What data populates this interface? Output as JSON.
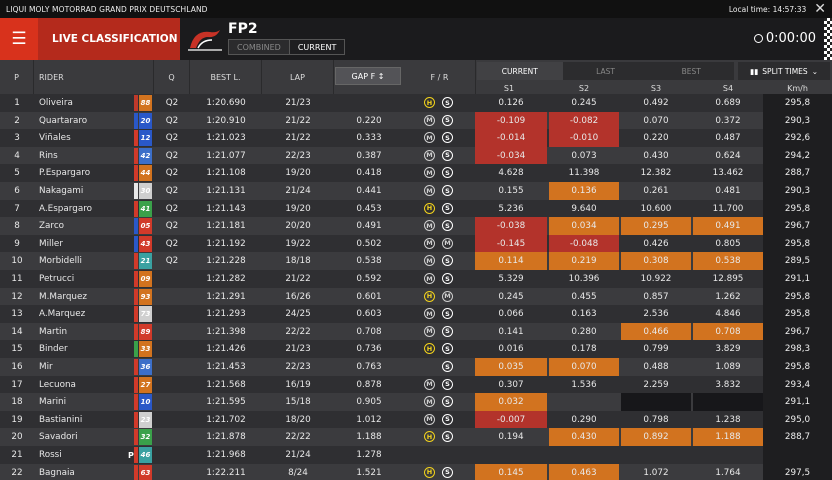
{
  "topbar": {
    "event": "LIQUI MOLY MOTORRAD GRAND PRIX DEUTSCHLAND",
    "local_time_label": "Local time:",
    "local_time": "14:57:33"
  },
  "header": {
    "menu_icon": "hamburger-icon",
    "title": "LIVE CLASSIFICATION",
    "session": "FP2",
    "modes": [
      "COMBINED",
      "CURRENT"
    ],
    "active_mode": "CURRENT",
    "timer": "0:00:00"
  },
  "columns": {
    "p": "P",
    "rider": "RIDER",
    "q": "Q",
    "best": "BEST L.",
    "lap": "LAP",
    "gap": "GAP F",
    "fr": "F / R",
    "kmh": "Km/h",
    "sectors": [
      "S1",
      "S2",
      "S3",
      "S4"
    ],
    "split_views": [
      "CURRENT",
      "LAST",
      "BEST"
    ],
    "split_times": "SPLIT TIMES"
  },
  "colors": {
    "brand_red": "#d8321c",
    "sector_red": "#b3332b",
    "sector_orange": "#d2731f",
    "hard_tyre": "#f2d21c"
  },
  "rows": [
    {
      "p": "1",
      "rider": "Oliveira",
      "num": "88",
      "flag": "#c0392b",
      "numcolor": "#d2731f",
      "q": "Q2",
      "best": "1:20.690",
      "lap": "21/23",
      "gap": "",
      "tyres": [
        "H",
        "S"
      ],
      "s": [
        "0.126",
        "0.245",
        "0.492",
        "0.689"
      ],
      "sc": [
        "",
        "",
        "",
        ""
      ],
      "kmh": "295,8"
    },
    {
      "p": "2",
      "rider": "Quartararo",
      "num": "20",
      "flag": "#2a58c8",
      "numcolor": "#2a58c8",
      "q": "Q2",
      "best": "1:20.910",
      "lap": "21/22",
      "gap": "0.220",
      "tyres": [
        "M",
        "S"
      ],
      "s": [
        "-0.109",
        "-0.082",
        "0.070",
        "0.372"
      ],
      "sc": [
        "red",
        "red",
        "",
        ""
      ],
      "kmh": "290,3"
    },
    {
      "p": "3",
      "rider": "Viñales",
      "num": "12",
      "flag": "#d13a2a",
      "numcolor": "#2a58c8",
      "q": "Q2",
      "best": "1:21.023",
      "lap": "21/22",
      "gap": "0.333",
      "tyres": [
        "M",
        "S"
      ],
      "s": [
        "-0.014",
        "-0.010",
        "0.220",
        "0.487"
      ],
      "sc": [
        "red",
        "red",
        "",
        ""
      ],
      "kmh": "292,6"
    },
    {
      "p": "4",
      "rider": "Rins",
      "num": "42",
      "flag": "#d13a2a",
      "numcolor": "#3c6fc9",
      "q": "Q2",
      "best": "1:21.077",
      "lap": "22/23",
      "gap": "0.387",
      "tyres": [
        "M",
        "S"
      ],
      "s": [
        "-0.034",
        "0.073",
        "0.430",
        "0.624"
      ],
      "sc": [
        "red",
        "",
        "",
        ""
      ],
      "kmh": "294,2"
    },
    {
      "p": "5",
      "rider": "P.Espargaro",
      "num": "44",
      "flag": "#d13a2a",
      "numcolor": "#d2731f",
      "q": "Q2",
      "best": "1:21.108",
      "lap": "19/20",
      "gap": "0.418",
      "tyres": [
        "M",
        "S"
      ],
      "s": [
        "4.628",
        "11.398",
        "12.382",
        "13.462"
      ],
      "sc": [
        "",
        "",
        "",
        ""
      ],
      "kmh": "288,7"
    },
    {
      "p": "6",
      "rider": "Nakagami",
      "num": "30",
      "flag": "#e8e8e8",
      "numcolor": "#cfcfcf",
      "q": "Q2",
      "best": "1:21.131",
      "lap": "21/24",
      "gap": "0.441",
      "tyres": [
        "M",
        "S"
      ],
      "s": [
        "0.155",
        "0.136",
        "0.261",
        "0.481"
      ],
      "sc": [
        "",
        "orange",
        "",
        ""
      ],
      "kmh": "290,3"
    },
    {
      "p": "7",
      "rider": "A.Espargaro",
      "num": "41",
      "flag": "#d13a2a",
      "numcolor": "#3aa14a",
      "q": "Q2",
      "best": "1:21.143",
      "lap": "19/20",
      "gap": "0.453",
      "tyres": [
        "H",
        "S"
      ],
      "s": [
        "5.236",
        "9.640",
        "10.600",
        "11.700"
      ],
      "sc": [
        "",
        "",
        "",
        ""
      ],
      "kmh": "295,8"
    },
    {
      "p": "8",
      "rider": "Zarco",
      "num": "05",
      "flag": "#2a58c8",
      "numcolor": "#d13a2a",
      "q": "Q2",
      "best": "1:21.181",
      "lap": "20/20",
      "gap": "0.491",
      "tyres": [
        "M",
        "S"
      ],
      "s": [
        "-0.038",
        "0.034",
        "0.295",
        "0.491"
      ],
      "sc": [
        "red",
        "orange",
        "orange",
        "orange"
      ],
      "kmh": "296,7"
    },
    {
      "p": "9",
      "rider": "Miller",
      "num": "43",
      "flag": "#2a58c8",
      "numcolor": "#d13a2a",
      "q": "Q2",
      "best": "1:21.192",
      "lap": "19/22",
      "gap": "0.502",
      "tyres": [
        "M",
        "M"
      ],
      "s": [
        "-0.145",
        "-0.048",
        "0.426",
        "0.805"
      ],
      "sc": [
        "red",
        "red",
        "",
        ""
      ],
      "kmh": "295,8"
    },
    {
      "p": "10",
      "rider": "Morbidelli",
      "num": "21",
      "flag": "#d13a2a",
      "numcolor": "#3aa1a1",
      "q": "Q2",
      "best": "1:21.228",
      "lap": "18/18",
      "gap": "0.538",
      "tyres": [
        "M",
        "S"
      ],
      "s": [
        "0.114",
        "0.219",
        "0.308",
        "0.538"
      ],
      "sc": [
        "orange",
        "orange",
        "orange",
        "orange"
      ],
      "kmh": "289,5"
    },
    {
      "p": "11",
      "rider": "Petrucci",
      "num": "09",
      "flag": "#d13a2a",
      "numcolor": "#d2731f",
      "q": "",
      "best": "1:21.282",
      "lap": "21/22",
      "gap": "0.592",
      "tyres": [
        "M",
        "S"
      ],
      "s": [
        "5.329",
        "10.396",
        "10.922",
        "12.895"
      ],
      "sc": [
        "",
        "",
        "",
        ""
      ],
      "kmh": "291,1"
    },
    {
      "p": "12",
      "rider": "M.Marquez",
      "num": "93",
      "flag": "#d13a2a",
      "numcolor": "#d2731f",
      "q": "",
      "best": "1:21.291",
      "lap": "16/26",
      "gap": "0.601",
      "tyres": [
        "H",
        "M"
      ],
      "s": [
        "0.245",
        "0.455",
        "0.857",
        "1.262"
      ],
      "sc": [
        "",
        "",
        "",
        ""
      ],
      "kmh": "295,8"
    },
    {
      "p": "13",
      "rider": "A.Marquez",
      "num": "73",
      "flag": "#d13a2a",
      "numcolor": "#cfcfcf",
      "q": "",
      "best": "1:21.293",
      "lap": "24/25",
      "gap": "0.603",
      "tyres": [
        "M",
        "S"
      ],
      "s": [
        "0.066",
        "0.163",
        "2.536",
        "4.846"
      ],
      "sc": [
        "",
        "",
        "",
        ""
      ],
      "kmh": "295,8"
    },
    {
      "p": "14",
      "rider": "Martin",
      "num": "89",
      "flag": "#d13a2a",
      "numcolor": "#d13a2a",
      "q": "",
      "best": "1:21.398",
      "lap": "22/22",
      "gap": "0.708",
      "tyres": [
        "M",
        "S"
      ],
      "s": [
        "0.141",
        "0.280",
        "0.466",
        "0.708"
      ],
      "sc": [
        "",
        "",
        "orange",
        "orange"
      ],
      "kmh": "296,7"
    },
    {
      "p": "15",
      "rider": "Binder",
      "num": "33",
      "flag": "#3aa14a",
      "numcolor": "#d2731f",
      "q": "",
      "best": "1:21.426",
      "lap": "21/23",
      "gap": "0.736",
      "tyres": [
        "H",
        "S"
      ],
      "s": [
        "0.016",
        "0.178",
        "0.799",
        "3.829"
      ],
      "sc": [
        "",
        "",
        "",
        ""
      ],
      "kmh": "298,3"
    },
    {
      "p": "16",
      "rider": "Mir",
      "num": "36",
      "flag": "#d13a2a",
      "numcolor": "#3c6fc9",
      "q": "",
      "best": "1:21.453",
      "lap": "22/23",
      "gap": "0.763",
      "tyres": [
        "",
        "S"
      ],
      "s": [
        "0.035",
        "0.070",
        "0.488",
        "1.089"
      ],
      "sc": [
        "orange",
        "orange",
        "",
        ""
      ],
      "kmh": "295,8"
    },
    {
      "p": "17",
      "rider": "Lecuona",
      "num": "27",
      "flag": "#d13a2a",
      "numcolor": "#d2731f",
      "q": "",
      "best": "1:21.568",
      "lap": "16/19",
      "gap": "0.878",
      "tyres": [
        "M",
        "S"
      ],
      "s": [
        "0.307",
        "1.536",
        "2.259",
        "3.832"
      ],
      "sc": [
        "",
        "",
        "",
        ""
      ],
      "kmh": "293,4"
    },
    {
      "p": "18",
      "rider": "Marini",
      "num": "10",
      "flag": "#d13a2a",
      "numcolor": "#2a58c8",
      "q": "",
      "best": "1:21.595",
      "lap": "15/18",
      "gap": "0.905",
      "tyres": [
        "M",
        "S"
      ],
      "s": [
        "0.032",
        "",
        "",
        ""
      ],
      "sc": [
        "orange",
        "",
        "dark",
        "dark"
      ],
      "kmh": "291,1"
    },
    {
      "p": "19",
      "rider": "Bastianini",
      "num": "23",
      "flag": "#d13a2a",
      "numcolor": "#cfcfcf",
      "q": "",
      "best": "1:21.702",
      "lap": "18/20",
      "gap": "1.012",
      "tyres": [
        "M",
        "S"
      ],
      "s": [
        "-0.007",
        "0.290",
        "0.798",
        "1.238"
      ],
      "sc": [
        "red",
        "",
        "",
        ""
      ],
      "kmh": "295,0"
    },
    {
      "p": "20",
      "rider": "Savadori",
      "num": "32",
      "flag": "#d13a2a",
      "numcolor": "#3aa14a",
      "q": "",
      "best": "1:21.878",
      "lap": "22/22",
      "gap": "1.188",
      "tyres": [
        "H",
        "S"
      ],
      "s": [
        "0.194",
        "0.430",
        "0.892",
        "1.188"
      ],
      "sc": [
        "",
        "orange",
        "orange",
        "orange"
      ],
      "kmh": "288,7"
    },
    {
      "p": "21",
      "rider": "Rossi",
      "num": "46",
      "flag": "#d13a2a",
      "numcolor": "#3aa1a1",
      "q": "",
      "best": "1:21.968",
      "lap": "21/24",
      "gap": "1.278",
      "tyres": [
        "",
        ""
      ],
      "s": [
        "",
        "",
        "",
        ""
      ],
      "sc": [
        "",
        "",
        "",
        ""
      ],
      "kmh": "",
      "pit": "P"
    },
    {
      "p": "22",
      "rider": "Bagnaia",
      "num": "63",
      "flag": "#d13a2a",
      "numcolor": "#d13a2a",
      "q": "",
      "best": "1:22.211",
      "lap": "8/24",
      "gap": "1.521",
      "tyres": [
        "H",
        "S"
      ],
      "s": [
        "0.145",
        "0.463",
        "1.072",
        "1.764"
      ],
      "sc": [
        "orange",
        "orange",
        "",
        ""
      ],
      "kmh": "297,5"
    }
  ]
}
